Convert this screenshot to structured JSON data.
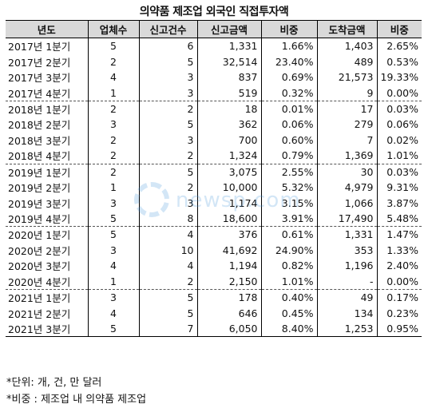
{
  "title": "의약품 제조업 외국인 직접투자액",
  "headers": [
    "년도",
    "업체수",
    "신고건수",
    "신고금액",
    "비중",
    "도착금액",
    "비중"
  ],
  "rows": [
    {
      "period": "2017년 1분기",
      "companies": "5",
      "reports": "6",
      "reported_amount": "1,331",
      "reported_share": "1.66%",
      "arrived_amount": "1,403",
      "arrived_share": "2.65%"
    },
    {
      "period": "2017년 2분기",
      "companies": "2",
      "reports": "5",
      "reported_amount": "32,514",
      "reported_share": "23.40%",
      "arrived_amount": "489",
      "arrived_share": "0.53%"
    },
    {
      "period": "2017년 3분기",
      "companies": "4",
      "reports": "3",
      "reported_amount": "837",
      "reported_share": "0.69%",
      "arrived_amount": "21,573",
      "arrived_share": "19.33%"
    },
    {
      "period": "2017년 4분기",
      "companies": "1",
      "reports": "3",
      "reported_amount": "519",
      "reported_share": "0.32%",
      "arrived_amount": "9",
      "arrived_share": "0.00%"
    },
    {
      "period": "2018년 1분기",
      "companies": "2",
      "reports": "2",
      "reported_amount": "18",
      "reported_share": "0.01%",
      "arrived_amount": "17",
      "arrived_share": "0.03%"
    },
    {
      "period": "2018년 2분기",
      "companies": "3",
      "reports": "5",
      "reported_amount": "362",
      "reported_share": "0.06%",
      "arrived_amount": "279",
      "arrived_share": "0.06%"
    },
    {
      "period": "2018년 3분기",
      "companies": "2",
      "reports": "3",
      "reported_amount": "700",
      "reported_share": "0.60%",
      "arrived_amount": "7",
      "arrived_share": "0.02%"
    },
    {
      "period": "2018년 4분기",
      "companies": "2",
      "reports": "2",
      "reported_amount": "1,324",
      "reported_share": "0.79%",
      "arrived_amount": "1,369",
      "arrived_share": "1.01%"
    },
    {
      "period": "2019년 1분기",
      "companies": "2",
      "reports": "5",
      "reported_amount": "3,075",
      "reported_share": "2.55%",
      "arrived_amount": "30",
      "arrived_share": "0.03%"
    },
    {
      "period": "2019년 2분기",
      "companies": "1",
      "reports": "2",
      "reported_amount": "10,000",
      "reported_share": "5.32%",
      "arrived_amount": "4,979",
      "arrived_share": "9.31%"
    },
    {
      "period": "2019년 3분기",
      "companies": "3",
      "reports": "3",
      "reported_amount": "1,174",
      "reported_share": "3.15%",
      "arrived_amount": "1,066",
      "arrived_share": "3.87%"
    },
    {
      "period": "2019년 4분기",
      "companies": "5",
      "reports": "8",
      "reported_amount": "18,600",
      "reported_share": "3.91%",
      "arrived_amount": "17,490",
      "arrived_share": "5.48%"
    },
    {
      "period": "2020년 1분기",
      "companies": "5",
      "reports": "4",
      "reported_amount": "376",
      "reported_share": "0.61%",
      "arrived_amount": "1,331",
      "arrived_share": "1.47%"
    },
    {
      "period": "2020년 2분기",
      "companies": "3",
      "reports": "10",
      "reported_amount": "41,692",
      "reported_share": "24.90%",
      "arrived_amount": "353",
      "arrived_share": "1.33%"
    },
    {
      "period": "2020년 3분기",
      "companies": "4",
      "reports": "4",
      "reported_amount": "1,194",
      "reported_share": "0.82%",
      "arrived_amount": "1,196",
      "arrived_share": "2.40%"
    },
    {
      "period": "2020년 4분기",
      "companies": "1",
      "reports": "2",
      "reported_amount": "2,150",
      "reported_share": "1.01%",
      "arrived_amount": "-",
      "arrived_share": "0.00%"
    },
    {
      "period": "2021년 1분기",
      "companies": "3",
      "reports": "5",
      "reported_amount": "178",
      "reported_share": "0.40%",
      "arrived_amount": "49",
      "arrived_share": "0.17%"
    },
    {
      "period": "2021년 2분기",
      "companies": "4",
      "reports": "5",
      "reported_amount": "646",
      "reported_share": "0.45%",
      "arrived_amount": "134",
      "arrived_share": "0.23%"
    },
    {
      "period": "2021년 3분기",
      "companies": "5",
      "reports": "7",
      "reported_amount": "6,050",
      "reported_share": "8.40%",
      "arrived_amount": "1,253",
      "arrived_share": "0.95%"
    }
  ],
  "notes": [
    "*단위: 개, 건, 만 달러",
    "*비중 : 제조업 내 의약품 제조업"
  ],
  "watermark": {
    "text": "newsp.com",
    "icon": "newspim-logo-icon",
    "color": "#3a8fd8"
  }
}
